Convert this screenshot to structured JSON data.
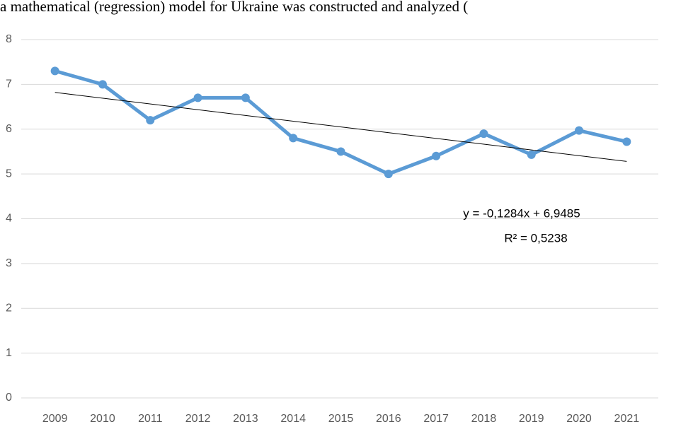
{
  "header_text": "a mathematical (regression) model for     Ukraine was constructed and analyzed (",
  "chart_data": {
    "type": "line",
    "categories": [
      "2009",
      "2010",
      "2011",
      "2012",
      "2013",
      "2014",
      "2015",
      "2016",
      "2017",
      "2018",
      "2019",
      "2020",
      "2021"
    ],
    "series": [
      {
        "color": "#5b9bd5",
        "values": [
          7.3,
          7.0,
          6.2,
          6.7,
          6.7,
          5.8,
          5.5,
          5.0,
          5.4,
          5.9,
          5.43,
          5.97,
          5.72
        ]
      }
    ],
    "ylim": [
      0,
      8
    ],
    "yticks": [
      0,
      1,
      2,
      3,
      4,
      5,
      6,
      7,
      8
    ],
    "grid": true,
    "trendline": {
      "slope": -0.1284,
      "intercept": 6.9485,
      "color": "#000000",
      "equation": "y = -0,1284x + 6,9485",
      "r_squared": 0.5238,
      "r_squared_label": "R² = 0,5238"
    }
  }
}
